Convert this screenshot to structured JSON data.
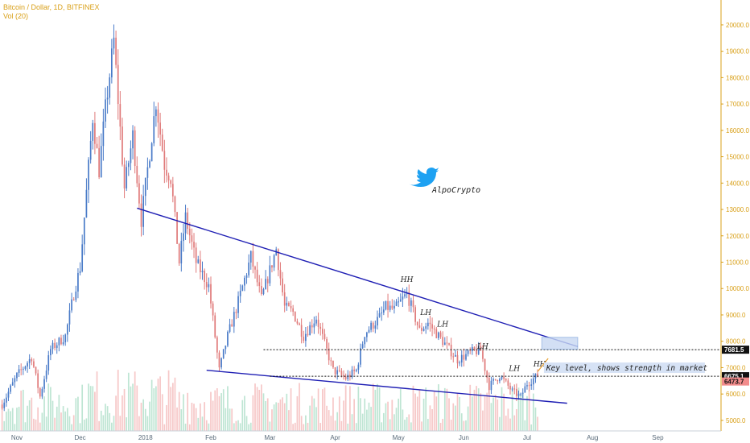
{
  "legend": {
    "title": "Bitcoin / Dollar, 1D, BITFINEX",
    "indicator": "Vol (20)"
  },
  "watermark": {
    "handle": "AlpoCrypto",
    "icon": "twitter-bird-icon",
    "color": "#1da1f2"
  },
  "colors": {
    "up": "#4a7bc8",
    "down": "#e07a7a",
    "trendline": "#1f1fb4",
    "axis": "#d9a019",
    "vol_up": "#a8dcc4",
    "vol_down": "#f3b4b4"
  },
  "chart_data": {
    "type": "candlestick",
    "x_labels": [
      "Nov",
      "Dec",
      "2018",
      "Feb",
      "Mar",
      "Apr",
      "May",
      "Jun",
      "Jul",
      "Aug",
      "Sep"
    ],
    "y_ticks": [
      "20000.0",
      "19000.0",
      "18000.0",
      "17000.0",
      "16000.0",
      "15000.0",
      "14000.0",
      "13000.0",
      "12000.0",
      "11000.0",
      "10000.0",
      "9000.0",
      "8000.0",
      "7000.0",
      "6000.0",
      "5000.0"
    ],
    "ylim": [
      4600,
      20700
    ],
    "price_tags": [
      {
        "value": "7681.5",
        "level": 7681.5,
        "bg": "#111111",
        "fg": "#ffffff"
      },
      {
        "value": "6675.1",
        "level": 6675.1,
        "bg": "#111111",
        "fg": "#ffffff"
      },
      {
        "value": "6473.7",
        "level": 6473.7,
        "bg": "#f28b8b",
        "fg": "#111111"
      }
    ],
    "annotations": [
      {
        "text": "HH",
        "date": "2018-05-05",
        "price": 10250
      },
      {
        "text": "LH",
        "date": "2018-05-14",
        "price": 9000
      },
      {
        "text": "LH",
        "date": "2018-05-22",
        "price": 8550
      },
      {
        "text": "LH",
        "date": "2018-06-10",
        "price": 7720
      },
      {
        "text": "LH",
        "date": "2018-06-25",
        "price": 6880
      },
      {
        "text": "HH",
        "date": "2018-07-07",
        "price": 7050
      }
    ],
    "key_level_note": "Key level, shows strength in market",
    "target_box": {
      "date_from": "2018-07-08",
      "date_to": "2018-07-25",
      "price_low": 7700,
      "price_high": 8150
    },
    "upper_trendline": {
      "from": [
        "2017-12-28",
        13050
      ],
      "to": [
        "2018-07-25",
        7800
      ]
    },
    "lower_trendline": {
      "from": [
        "2018-01-30",
        6900
      ],
      "to": [
        "2018-07-20",
        5650
      ]
    },
    "horizontal_levels": [
      {
        "from": "2018-02-26",
        "to": "2018-09-06",
        "price": 7681.5
      },
      {
        "from": "2018-03-01",
        "to": "2018-09-06",
        "price": 6675.1
      }
    ],
    "price_path": [
      [
        "2017-10-25",
        5600
      ],
      [
        "2017-11-01",
        6700
      ],
      [
        "2017-11-08",
        7400
      ],
      [
        "2017-11-12",
        5900
      ],
      [
        "2017-11-17",
        7700
      ],
      [
        "2017-11-24",
        8200
      ],
      [
        "2017-11-28",
        9800
      ],
      [
        "2017-12-01",
        10800
      ],
      [
        "2017-12-07",
        16500
      ],
      [
        "2017-12-10",
        14500
      ],
      [
        "2017-12-13",
        16800
      ],
      [
        "2017-12-17",
        19400
      ],
      [
        "2017-12-22",
        13800
      ],
      [
        "2017-12-26",
        15800
      ],
      [
        "2017-12-30",
        12600
      ],
      [
        "2018-01-06",
        17100
      ],
      [
        "2018-01-10",
        14700
      ],
      [
        "2018-01-13",
        14200
      ],
      [
        "2018-01-17",
        11000
      ],
      [
        "2018-01-20",
        12700
      ],
      [
        "2018-01-25",
        11000
      ],
      [
        "2018-01-31",
        10100
      ],
      [
        "2018-02-05",
        6900
      ],
      [
        "2018-02-09",
        8200
      ],
      [
        "2018-02-14",
        9500
      ],
      [
        "2018-02-20",
        11200
      ],
      [
        "2018-02-25",
        9600
      ],
      [
        "2018-03-04",
        11500
      ],
      [
        "2018-03-08",
        9300
      ],
      [
        "2018-03-12",
        9100
      ],
      [
        "2018-03-17",
        8200
      ],
      [
        "2018-03-23",
        8900
      ],
      [
        "2018-03-31",
        6900
      ],
      [
        "2018-04-06",
        6600
      ],
      [
        "2018-04-11",
        6900
      ],
      [
        "2018-04-15",
        8300
      ],
      [
        "2018-04-22",
        8900
      ],
      [
        "2018-04-25",
        9300
      ],
      [
        "2018-04-29",
        9200
      ],
      [
        "2018-05-05",
        9800
      ],
      [
        "2018-05-11",
        8400
      ],
      [
        "2018-05-15",
        8700
      ],
      [
        "2018-05-22",
        8000
      ],
      [
        "2018-05-29",
        7300
      ],
      [
        "2018-06-05",
        7600
      ],
      [
        "2018-06-09",
        7650
      ],
      [
        "2018-06-13",
        6300
      ],
      [
        "2018-06-18",
        6700
      ],
      [
        "2018-06-24",
        6100
      ],
      [
        "2018-06-28",
        5900
      ],
      [
        "2018-07-01",
        6400
      ],
      [
        "2018-07-06",
        6700
      ]
    ]
  }
}
